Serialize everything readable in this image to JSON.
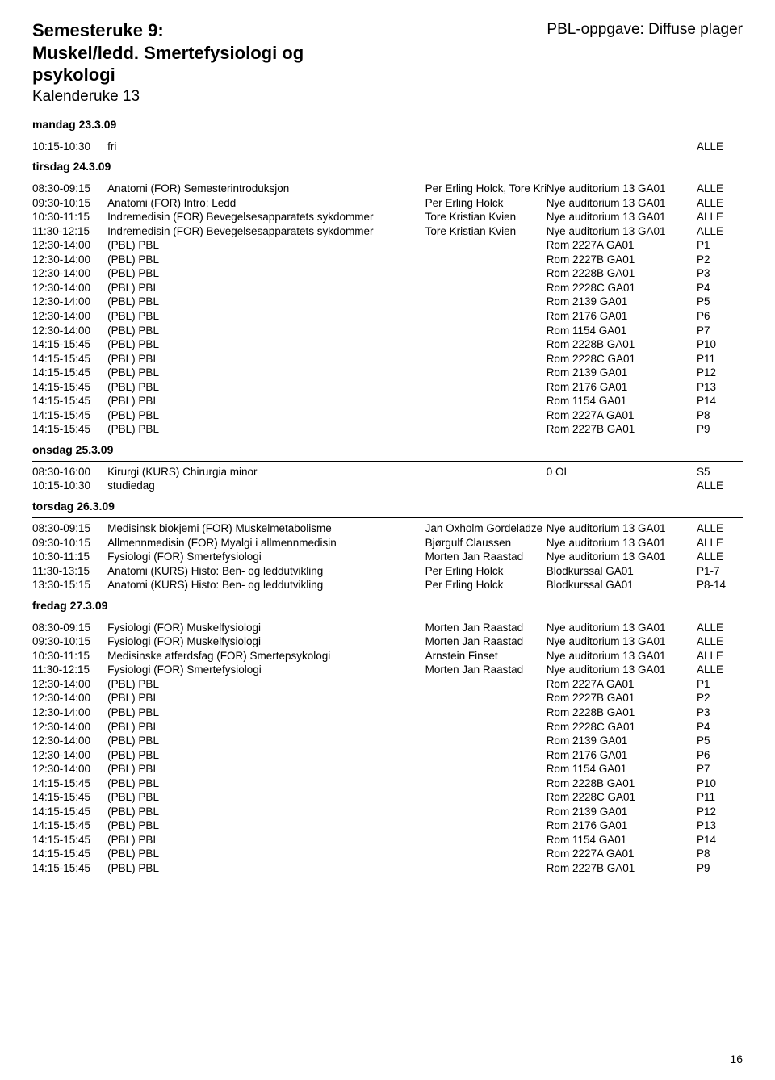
{
  "header": {
    "title_line1": "Semesteruke 9:",
    "title_line2": "Muskel/ledd. Smertefysiologi og",
    "title_line3": "psykologi",
    "calendar_line": "Kalenderuke 13",
    "assignment": "PBL-oppgave: Diffuse plager"
  },
  "pageNumber": "16",
  "days": [
    {
      "label": "mandag 23.3.09",
      "rows": [
        {
          "time": "10:15-10:30",
          "desc": "fri",
          "person": "",
          "location": "",
          "group": "ALLE"
        }
      ]
    },
    {
      "label": "tirsdag 24.3.09",
      "rows": [
        {
          "time": "08:30-09:15",
          "desc": "Anatomi (FOR) Semesterintroduksjon",
          "person": "Per Erling Holck, Tore Kristian Kvien",
          "location": "Nye auditorium 13 GA01",
          "group": "ALLE"
        },
        {
          "time": "09:30-10:15",
          "desc": "Anatomi (FOR) Intro: Ledd",
          "person": "Per Erling Holck",
          "location": "Nye auditorium 13 GA01",
          "group": "ALLE"
        },
        {
          "time": "10:30-11:15",
          "desc": "Indremedisin (FOR) Bevegelsesapparatets sykdommer",
          "person": "Tore Kristian Kvien",
          "location": "Nye auditorium 13 GA01",
          "group": "ALLE"
        },
        {
          "time": "11:30-12:15",
          "desc": "Indremedisin (FOR) Bevegelsesapparatets sykdommer",
          "person": "Tore Kristian Kvien",
          "location": "Nye auditorium 13 GA01",
          "group": "ALLE"
        },
        {
          "time": "12:30-14:00",
          "desc": "(PBL) PBL",
          "person": "",
          "location": "Rom 2227A GA01",
          "group": "P1"
        },
        {
          "time": "12:30-14:00",
          "desc": "(PBL) PBL",
          "person": "",
          "location": "Rom 2227B GA01",
          "group": "P2"
        },
        {
          "time": "12:30-14:00",
          "desc": "(PBL) PBL",
          "person": "",
          "location": "Rom 2228B GA01",
          "group": "P3"
        },
        {
          "time": "12:30-14:00",
          "desc": "(PBL) PBL",
          "person": "",
          "location": "Rom 2228C GA01",
          "group": "P4"
        },
        {
          "time": "12:30-14:00",
          "desc": "(PBL) PBL",
          "person": "",
          "location": "Rom 2139 GA01",
          "group": "P5"
        },
        {
          "time": "12:30-14:00",
          "desc": "(PBL) PBL",
          "person": "",
          "location": "Rom 2176 GA01",
          "group": "P6"
        },
        {
          "time": "12:30-14:00",
          "desc": "(PBL) PBL",
          "person": "",
          "location": "Rom 1154 GA01",
          "group": "P7"
        },
        {
          "time": "14:15-15:45",
          "desc": "(PBL) PBL",
          "person": "",
          "location": "Rom 2228B GA01",
          "group": "P10"
        },
        {
          "time": "14:15-15:45",
          "desc": "(PBL) PBL",
          "person": "",
          "location": "Rom 2228C GA01",
          "group": "P11"
        },
        {
          "time": "14:15-15:45",
          "desc": "(PBL) PBL",
          "person": "",
          "location": "Rom 2139 GA01",
          "group": "P12"
        },
        {
          "time": "14:15-15:45",
          "desc": "(PBL) PBL",
          "person": "",
          "location": "Rom 2176 GA01",
          "group": "P13"
        },
        {
          "time": "14:15-15:45",
          "desc": "(PBL) PBL",
          "person": "",
          "location": "Rom 1154 GA01",
          "group": "P14"
        },
        {
          "time": "14:15-15:45",
          "desc": "(PBL) PBL",
          "person": "",
          "location": "Rom 2227A GA01",
          "group": "P8"
        },
        {
          "time": "14:15-15:45",
          "desc": "(PBL) PBL",
          "person": "",
          "location": "Rom 2227B GA01",
          "group": "P9"
        }
      ]
    },
    {
      "label": "onsdag 25.3.09",
      "rows": [
        {
          "time": "08:30-16:00",
          "desc": "Kirurgi (KURS) Chirurgia minor",
          "person": "",
          "location": "0 OL",
          "group": "S5"
        },
        {
          "time": "10:15-10:30",
          "desc": "studiedag",
          "person": "",
          "location": "",
          "group": "ALLE"
        }
      ]
    },
    {
      "label": "torsdag 26.3.09",
      "rows": [
        {
          "time": "08:30-09:15",
          "desc": "Medisinsk biokjemi (FOR) Muskelmetabolisme",
          "person": "Jan Oxholm Gordeladze",
          "location": "Nye auditorium 13 GA01",
          "group": "ALLE"
        },
        {
          "time": "09:30-10:15",
          "desc": "Allmennmedisin (FOR) Myalgi i allmennmedisin",
          "person": "Bjørgulf Claussen",
          "location": "Nye auditorium 13 GA01",
          "group": "ALLE"
        },
        {
          "time": "10:30-11:15",
          "desc": "Fysiologi (FOR) Smertefysiologi",
          "person": "Morten Jan Raastad",
          "location": "Nye auditorium 13 GA01",
          "group": "ALLE"
        },
        {
          "time": "11:30-13:15",
          "desc": "Anatomi (KURS) Histo: Ben- og leddutvikling",
          "person": "Per Erling Holck",
          "location": "Blodkurssal GA01",
          "group": "P1-7"
        },
        {
          "time": "13:30-15:15",
          "desc": "Anatomi (KURS) Histo: Ben- og leddutvikling",
          "person": "Per Erling Holck",
          "location": "Blodkurssal GA01",
          "group": "P8-14"
        }
      ]
    },
    {
      "label": "fredag 27.3.09",
      "rows": [
        {
          "time": "08:30-09:15",
          "desc": "Fysiologi (FOR) Muskelfysiologi",
          "person": "Morten Jan Raastad",
          "location": "Nye auditorium 13 GA01",
          "group": "ALLE"
        },
        {
          "time": "09:30-10:15",
          "desc": "Fysiologi (FOR) Muskelfysiologi",
          "person": "Morten Jan Raastad",
          "location": "Nye auditorium 13 GA01",
          "group": "ALLE"
        },
        {
          "time": "10:30-11:15",
          "desc": "Medisinske atferdsfag (FOR) Smertepsykologi",
          "person": "Arnstein Finset",
          "location": "Nye auditorium 13 GA01",
          "group": "ALLE"
        },
        {
          "time": "11:30-12:15",
          "desc": "Fysiologi (FOR) Smertefysiologi",
          "person": "Morten Jan Raastad",
          "location": "Nye auditorium 13 GA01",
          "group": "ALLE"
        },
        {
          "time": "12:30-14:00",
          "desc": "(PBL) PBL",
          "person": "",
          "location": "Rom 2227A GA01",
          "group": "P1"
        },
        {
          "time": "12:30-14:00",
          "desc": "(PBL) PBL",
          "person": "",
          "location": "Rom 2227B GA01",
          "group": "P2"
        },
        {
          "time": "12:30-14:00",
          "desc": "(PBL) PBL",
          "person": "",
          "location": "Rom 2228B GA01",
          "group": "P3"
        },
        {
          "time": "12:30-14:00",
          "desc": "(PBL) PBL",
          "person": "",
          "location": "Rom 2228C GA01",
          "group": "P4"
        },
        {
          "time": "12:30-14:00",
          "desc": "(PBL) PBL",
          "person": "",
          "location": "Rom 2139 GA01",
          "group": "P5"
        },
        {
          "time": "12:30-14:00",
          "desc": "(PBL) PBL",
          "person": "",
          "location": "Rom 2176 GA01",
          "group": "P6"
        },
        {
          "time": "12:30-14:00",
          "desc": "(PBL) PBL",
          "person": "",
          "location": "Rom 1154 GA01",
          "group": "P7"
        },
        {
          "time": "14:15-15:45",
          "desc": "(PBL) PBL",
          "person": "",
          "location": "Rom 2228B GA01",
          "group": "P10"
        },
        {
          "time": "14:15-15:45",
          "desc": "(PBL) PBL",
          "person": "",
          "location": "Rom 2228C GA01",
          "group": "P11"
        },
        {
          "time": "14:15-15:45",
          "desc": "(PBL) PBL",
          "person": "",
          "location": "Rom 2139 GA01",
          "group": "P12"
        },
        {
          "time": "14:15-15:45",
          "desc": "(PBL) PBL",
          "person": "",
          "location": "Rom 2176 GA01",
          "group": "P13"
        },
        {
          "time": "14:15-15:45",
          "desc": "(PBL) PBL",
          "person": "",
          "location": "Rom 1154 GA01",
          "group": "P14"
        },
        {
          "time": "14:15-15:45",
          "desc": "(PBL) PBL",
          "person": "",
          "location": "Rom 2227A GA01",
          "group": "P8"
        },
        {
          "time": "14:15-15:45",
          "desc": "(PBL) PBL",
          "person": "",
          "location": "Rom 2227B GA01",
          "group": "P9"
        }
      ]
    }
  ]
}
